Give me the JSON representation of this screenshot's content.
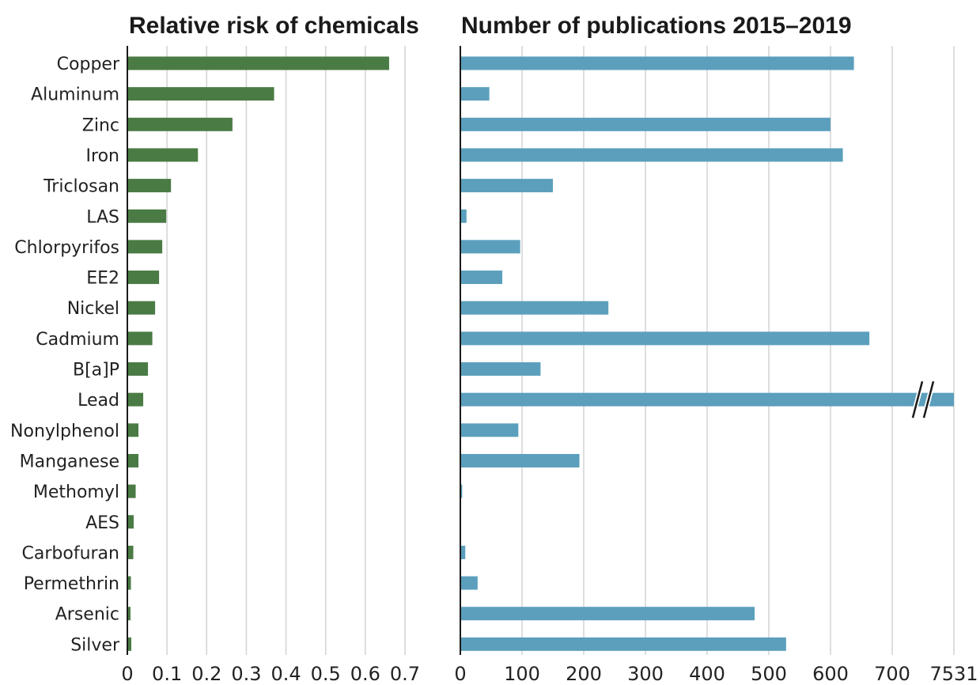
{
  "chart_data": [
    {
      "type": "bar",
      "orientation": "horizontal",
      "title": "Relative risk of chemicals",
      "categories": [
        "Copper",
        "Aluminum",
        "Zinc",
        "Iron",
        "Triclosan",
        "LAS",
        "Chlorpyrifos",
        "EE2",
        "Nickel",
        "Cadmium",
        "B[a]P",
        "Lead",
        "Nonylphenol",
        "Manganese",
        "Methomyl",
        "AES",
        "Carbofuran",
        "Permethrin",
        "Arsenic",
        "Silver"
      ],
      "values": [
        0.66,
        0.37,
        0.265,
        0.178,
        0.11,
        0.098,
        0.088,
        0.08,
        0.07,
        0.063,
        0.052,
        0.04,
        0.028,
        0.028,
        0.021,
        0.016,
        0.015,
        0.009,
        0.008,
        0.01
      ],
      "xlim": [
        0,
        0.7
      ],
      "ticks": [
        "0",
        "0.1",
        "0.2",
        "0.3",
        "0.4",
        "0.5",
        "0.6",
        "0.7"
      ],
      "tick_values": [
        0,
        0.1,
        0.2,
        0.3,
        0.4,
        0.5,
        0.6,
        0.7
      ],
      "color": "#4a7b44",
      "grid": true
    },
    {
      "type": "bar",
      "orientation": "horizontal",
      "title": "Number of publications 2015–2019",
      "categories": [
        "Copper",
        "Aluminum",
        "Zinc",
        "Iron",
        "Triclosan",
        "LAS",
        "Chlorpyrifos",
        "EE2",
        "Nickel",
        "Cadmium",
        "B[a]P",
        "Lead",
        "Nonylphenol",
        "Manganese",
        "Methomyl",
        "AES",
        "Carbofuran",
        "Permethrin",
        "Arsenic",
        "Silver"
      ],
      "values": [
        638,
        47,
        600,
        620,
        150,
        10,
        97,
        68,
        240,
        663,
        130,
        7531,
        94,
        193,
        3,
        0,
        8,
        28,
        477,
        528
      ],
      "xlim": [
        0,
        800
      ],
      "ticks": [
        "0",
        "100",
        "200",
        "300",
        "400",
        "500",
        "600",
        "700",
        "7531"
      ],
      "tick_values": [
        0,
        100,
        200,
        300,
        400,
        500,
        600,
        700,
        800
      ],
      "axis_break": {
        "between": [
          700,
          7531
        ]
      },
      "color": "#5b9fbd",
      "grid": true
    }
  ]
}
